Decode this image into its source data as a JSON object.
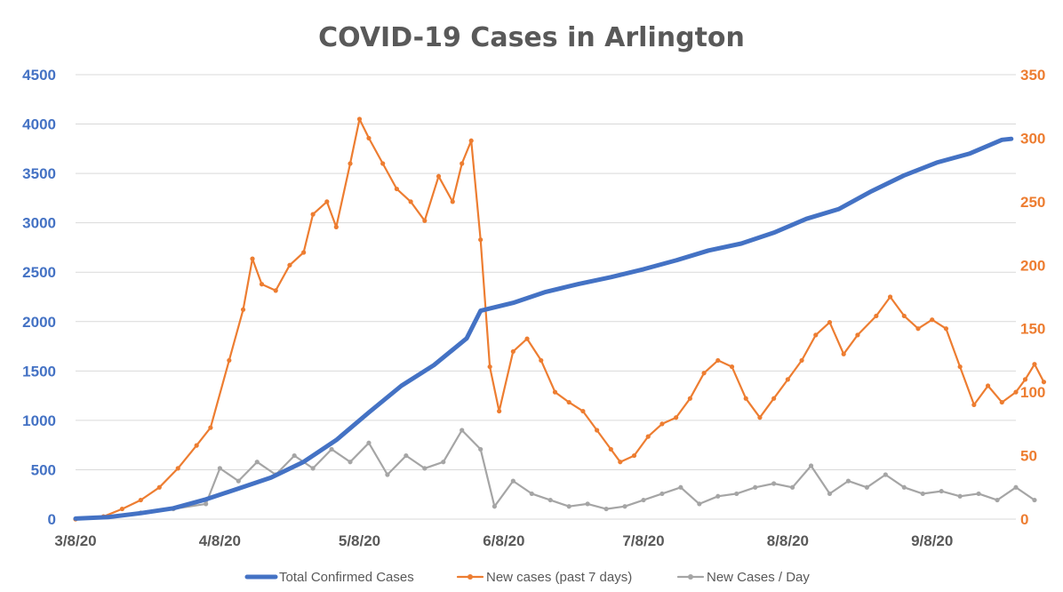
{
  "chart_data": {
    "type": "line",
    "title": "COVID-19 Cases in Arlington",
    "x_dates": [
      "2020-03-08",
      "2020-04-08",
      "2020-05-08",
      "2020-06-08",
      "2020-07-08",
      "2020-08-08",
      "2020-09-08"
    ],
    "x_ticks": [
      "3/8/20",
      "4/8/20",
      "5/8/20",
      "6/8/20",
      "7/8/20",
      "8/8/20",
      "9/8/20"
    ],
    "x_range": [
      "2020-03-08",
      "2020-09-26"
    ],
    "y_left": {
      "range": [
        0,
        4500
      ],
      "ticks": [
        "0",
        "500",
        "1000",
        "1500",
        "2000",
        "2500",
        "3000",
        "3500",
        "4000",
        "4500"
      ],
      "color": "#4472c4"
    },
    "y_right": {
      "range": [
        0,
        350
      ],
      "ticks": [
        "0",
        "50",
        "100",
        "150",
        "200",
        "250",
        "300",
        "350"
      ],
      "color": "#ed7d31"
    },
    "grid": "horizontal",
    "legend_position": "bottom",
    "series": [
      {
        "name": "Total Confirmed Cases",
        "axis": "left",
        "color": "#4472c4",
        "points": [
          [
            "2020-03-08",
            5
          ],
          [
            "2020-03-15",
            20
          ],
          [
            "2020-03-22",
            60
          ],
          [
            "2020-03-29",
            110
          ],
          [
            "2020-04-05",
            200
          ],
          [
            "2020-04-12",
            310
          ],
          [
            "2020-04-19",
            420
          ],
          [
            "2020-04-26",
            580
          ],
          [
            "2020-05-03",
            800
          ],
          [
            "2020-05-10",
            1080
          ],
          [
            "2020-05-17",
            1350
          ],
          [
            "2020-05-24",
            1560
          ],
          [
            "2020-05-31",
            1830
          ],
          [
            "2020-06-03",
            2110
          ],
          [
            "2020-06-10",
            2190
          ],
          [
            "2020-06-17",
            2300
          ],
          [
            "2020-06-24",
            2380
          ],
          [
            "2020-07-01",
            2450
          ],
          [
            "2020-07-08",
            2530
          ],
          [
            "2020-07-15",
            2620
          ],
          [
            "2020-07-22",
            2720
          ],
          [
            "2020-07-29",
            2790
          ],
          [
            "2020-08-05",
            2900
          ],
          [
            "2020-08-12",
            3040
          ],
          [
            "2020-08-19",
            3140
          ],
          [
            "2020-08-26",
            3320
          ],
          [
            "2020-09-02",
            3480
          ],
          [
            "2020-09-09",
            3610
          ],
          [
            "2020-09-16",
            3700
          ],
          [
            "2020-09-23",
            3840
          ],
          [
            "2020-09-25",
            3850
          ]
        ]
      },
      {
        "name": "New cases (past 7 days)",
        "axis": "right",
        "color": "#ed7d31",
        "points": [
          [
            "2020-03-08",
            0
          ],
          [
            "2020-03-14",
            2
          ],
          [
            "2020-03-18",
            8
          ],
          [
            "2020-03-22",
            15
          ],
          [
            "2020-03-26",
            25
          ],
          [
            "2020-03-30",
            40
          ],
          [
            "2020-04-03",
            58
          ],
          [
            "2020-04-06",
            72
          ],
          [
            "2020-04-10",
            125
          ],
          [
            "2020-04-13",
            165
          ],
          [
            "2020-04-15",
            205
          ],
          [
            "2020-04-17",
            185
          ],
          [
            "2020-04-20",
            180
          ],
          [
            "2020-04-23",
            200
          ],
          [
            "2020-04-26",
            210
          ],
          [
            "2020-04-28",
            240
          ],
          [
            "2020-05-01",
            250
          ],
          [
            "2020-05-03",
            230
          ],
          [
            "2020-05-06",
            280
          ],
          [
            "2020-05-08",
            315
          ],
          [
            "2020-05-10",
            300
          ],
          [
            "2020-05-13",
            280
          ],
          [
            "2020-05-16",
            260
          ],
          [
            "2020-05-19",
            250
          ],
          [
            "2020-05-22",
            235
          ],
          [
            "2020-05-25",
            270
          ],
          [
            "2020-05-28",
            250
          ],
          [
            "2020-05-30",
            280
          ],
          [
            "2020-06-01",
            298
          ],
          [
            "2020-06-03",
            220
          ],
          [
            "2020-06-05",
            120
          ],
          [
            "2020-06-07",
            85
          ],
          [
            "2020-06-10",
            132
          ],
          [
            "2020-06-13",
            142
          ],
          [
            "2020-06-16",
            125
          ],
          [
            "2020-06-19",
            100
          ],
          [
            "2020-06-22",
            92
          ],
          [
            "2020-06-25",
            85
          ],
          [
            "2020-06-28",
            70
          ],
          [
            "2020-07-01",
            55
          ],
          [
            "2020-07-03",
            45
          ],
          [
            "2020-07-06",
            50
          ],
          [
            "2020-07-09",
            65
          ],
          [
            "2020-07-12",
            75
          ],
          [
            "2020-07-15",
            80
          ],
          [
            "2020-07-18",
            95
          ],
          [
            "2020-07-21",
            115
          ],
          [
            "2020-07-24",
            125
          ],
          [
            "2020-07-27",
            120
          ],
          [
            "2020-07-30",
            95
          ],
          [
            "2020-08-02",
            80
          ],
          [
            "2020-08-05",
            95
          ],
          [
            "2020-08-08",
            110
          ],
          [
            "2020-08-11",
            125
          ],
          [
            "2020-08-14",
            145
          ],
          [
            "2020-08-17",
            155
          ],
          [
            "2020-08-20",
            130
          ],
          [
            "2020-08-23",
            145
          ],
          [
            "2020-08-27",
            160
          ],
          [
            "2020-08-30",
            175
          ],
          [
            "2020-09-02",
            160
          ],
          [
            "2020-09-05",
            150
          ],
          [
            "2020-09-08",
            157
          ],
          [
            "2020-09-11",
            150
          ],
          [
            "2020-09-14",
            120
          ],
          [
            "2020-09-17",
            90
          ],
          [
            "2020-09-20",
            105
          ],
          [
            "2020-09-23",
            92
          ],
          [
            "2020-09-26",
            100
          ],
          [
            "2020-09-28",
            110
          ],
          [
            "2020-09-30",
            122
          ],
          [
            "2020-10-02",
            108
          ]
        ]
      },
      {
        "name": "New Cases / Day",
        "axis": "right",
        "color": "#a5a5a5",
        "points": [
          [
            "2020-03-08",
            0
          ],
          [
            "2020-03-15",
            2
          ],
          [
            "2020-03-22",
            5
          ],
          [
            "2020-03-29",
            8
          ],
          [
            "2020-04-05",
            12
          ],
          [
            "2020-04-08",
            40
          ],
          [
            "2020-04-12",
            30
          ],
          [
            "2020-04-16",
            45
          ],
          [
            "2020-04-20",
            35
          ],
          [
            "2020-04-24",
            50
          ],
          [
            "2020-04-28",
            40
          ],
          [
            "2020-05-02",
            55
          ],
          [
            "2020-05-06",
            45
          ],
          [
            "2020-05-10",
            60
          ],
          [
            "2020-05-14",
            35
          ],
          [
            "2020-05-18",
            50
          ],
          [
            "2020-05-22",
            40
          ],
          [
            "2020-05-26",
            45
          ],
          [
            "2020-05-30",
            70
          ],
          [
            "2020-06-03",
            55
          ],
          [
            "2020-06-06",
            10
          ],
          [
            "2020-06-10",
            30
          ],
          [
            "2020-06-14",
            20
          ],
          [
            "2020-06-18",
            15
          ],
          [
            "2020-06-22",
            10
          ],
          [
            "2020-06-26",
            12
          ],
          [
            "2020-06-30",
            8
          ],
          [
            "2020-07-04",
            10
          ],
          [
            "2020-07-08",
            15
          ],
          [
            "2020-07-12",
            20
          ],
          [
            "2020-07-16",
            25
          ],
          [
            "2020-07-20",
            12
          ],
          [
            "2020-07-24",
            18
          ],
          [
            "2020-07-28",
            20
          ],
          [
            "2020-08-01",
            25
          ],
          [
            "2020-08-05",
            28
          ],
          [
            "2020-08-09",
            25
          ],
          [
            "2020-08-13",
            42
          ],
          [
            "2020-08-17",
            20
          ],
          [
            "2020-08-21",
            30
          ],
          [
            "2020-08-25",
            25
          ],
          [
            "2020-08-29",
            35
          ],
          [
            "2020-09-02",
            25
          ],
          [
            "2020-09-06",
            20
          ],
          [
            "2020-09-10",
            22
          ],
          [
            "2020-09-14",
            18
          ],
          [
            "2020-09-18",
            20
          ],
          [
            "2020-09-22",
            15
          ],
          [
            "2020-09-26",
            25
          ],
          [
            "2020-09-30",
            15
          ]
        ]
      }
    ]
  }
}
